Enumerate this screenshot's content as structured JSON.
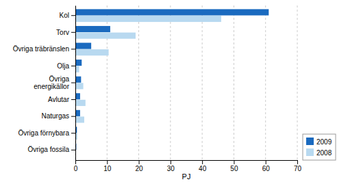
{
  "chart_data": {
    "type": "bar",
    "orientation": "horizontal",
    "categories": [
      "Kol",
      "Torv",
      "Övriga träbränslen",
      "Olja",
      "Övriga\nenergikällor",
      "Avlutar",
      "Naturgas",
      "Övriga förnybara",
      "Övriga fossila"
    ],
    "series": [
      {
        "name": "2009",
        "color": "#1a6abf",
        "values": [
          61,
          11,
          5.0,
          2.0,
          1.8,
          1.5,
          1.5,
          0.5,
          0.3
        ]
      },
      {
        "name": "2008",
        "color": "#b8d9f0",
        "values": [
          46,
          19,
          10.5,
          1.2,
          2.5,
          3.2,
          2.8,
          0.6,
          0.2
        ]
      }
    ],
    "xlim": [
      0,
      70
    ],
    "xticks": [
      0,
      10,
      20,
      30,
      40,
      50,
      60,
      70
    ],
    "x_label": "PJ",
    "grid": true,
    "legend": "lower right"
  }
}
